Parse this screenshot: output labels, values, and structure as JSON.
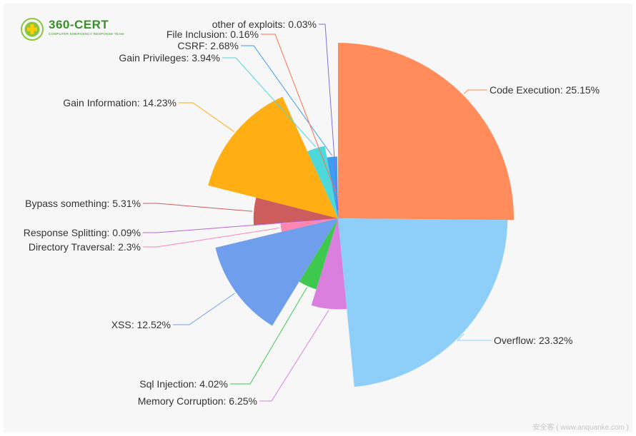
{
  "logo": {
    "name": "360-CERT",
    "sub": "COMPUTER EMERGENCY RESPONSE TEAM",
    "color": "#3a8f2a",
    "icon": "globe-cross-icon"
  },
  "watermark": "安全客 ( www.anquanke.com )",
  "chart_data": {
    "type": "pie",
    "variant": "nightingale-rose",
    "title": "",
    "slices": [
      {
        "label": "Code Execution: 25.15%",
        "name": "Code Execution",
        "value": 25.15,
        "color": "#ff8c5a"
      },
      {
        "label": "Overflow: 23.32%",
        "name": "Overflow",
        "value": 23.32,
        "color": "#8ecff9"
      },
      {
        "label": "Memory Corruption: 6.25%",
        "name": "Memory Corruption",
        "value": 6.25,
        "color": "#da7fde"
      },
      {
        "label": "Sql Injection: 4.02%",
        "name": "Sql Injection",
        "value": 4.02,
        "color": "#3ec94e"
      },
      {
        "label": "XSS: 12.52%",
        "name": "XSS",
        "value": 12.52,
        "color": "#6f9fec"
      },
      {
        "label": "Directory Traversal: 2.3%",
        "name": "Directory Traversal",
        "value": 2.3,
        "color": "#ff86b2"
      },
      {
        "label": "Response Splitting: 0.09%",
        "name": "Response Splitting",
        "value": 0.09,
        "color": "#b565e0"
      },
      {
        "label": "Bypass something: 5.31%",
        "name": "Bypass something",
        "value": 5.31,
        "color": "#cd5c5c"
      },
      {
        "label": "Gain Information: 14.23%",
        "name": "Gain Information",
        "value": 14.23,
        "color": "#ffae14"
      },
      {
        "label": "Gain Privileges: 3.94%",
        "name": "Gain Privileges",
        "value": 3.94,
        "color": "#4dd9d9"
      },
      {
        "label": "CSRF: 2.68%",
        "name": "CSRF",
        "value": 2.68,
        "color": "#3d9cf0"
      },
      {
        "label": "File Inclusion: 0.16%",
        "name": "File Inclusion",
        "value": 0.16,
        "color": "#ff6e4f"
      },
      {
        "label": "other of exploits: 0.03%",
        "name": "other of exploits",
        "value": 0.03,
        "color": "#7b6fe0"
      }
    ]
  }
}
